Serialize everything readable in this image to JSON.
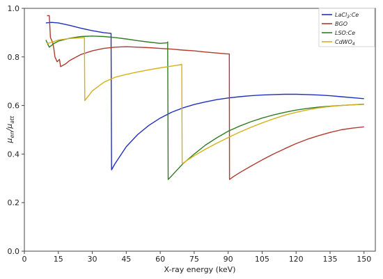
{
  "chart_data": {
    "type": "line",
    "xlabel": "X-ray energy (keV)",
    "ylabel_main": "μ",
    "ylabel_main_sub": "en",
    "ylabel_sep": "/",
    "ylabel_den": "μ",
    "ylabel_den_sub": "att",
    "xlim": [
      0,
      155
    ],
    "ylim": [
      0,
      1.0
    ],
    "xticks": [
      0,
      15,
      30,
      45,
      60,
      75,
      90,
      105,
      120,
      135,
      150
    ],
    "yticks": [
      0.0,
      0.2,
      0.4,
      0.6,
      0.8,
      1.0
    ],
    "ytick_labels": [
      "0.0",
      "0.2",
      "0.4",
      "0.6",
      "0.8",
      "1.0"
    ],
    "legend_position": "top-right",
    "grid": false,
    "series": [
      {
        "name": "LaCl3:Ce",
        "legend_parts": [
          "LaCl",
          "3",
          ":Ce"
        ],
        "color": "#1f2fbf",
        "points": [
          [
            9.5,
            0.94
          ],
          [
            12,
            0.942
          ],
          [
            15,
            0.94
          ],
          [
            20,
            0.93
          ],
          [
            25,
            0.918
          ],
          [
            30,
            0.908
          ],
          [
            35,
            0.9
          ],
          [
            37,
            0.898
          ],
          [
            38.3,
            0.897
          ],
          [
            38.5,
            0.335
          ],
          [
            40,
            0.36
          ],
          [
            45,
            0.43
          ],
          [
            50,
            0.48
          ],
          [
            55,
            0.518
          ],
          [
            60,
            0.548
          ],
          [
            65,
            0.572
          ],
          [
            70,
            0.59
          ],
          [
            75,
            0.604
          ],
          [
            80,
            0.615
          ],
          [
            85,
            0.624
          ],
          [
            90,
            0.631
          ],
          [
            95,
            0.636
          ],
          [
            100,
            0.64
          ],
          [
            105,
            0.643
          ],
          [
            110,
            0.645
          ],
          [
            115,
            0.646
          ],
          [
            120,
            0.646
          ],
          [
            125,
            0.645
          ],
          [
            130,
            0.643
          ],
          [
            135,
            0.64
          ],
          [
            140,
            0.636
          ],
          [
            145,
            0.632
          ],
          [
            150,
            0.628
          ]
        ]
      },
      {
        "name": "BGO",
        "legend_parts": [
          "BGO"
        ],
        "color": "#b03a2e",
        "points": [
          [
            10,
            0.97
          ],
          [
            11,
            0.97
          ],
          [
            11.5,
            0.88
          ],
          [
            12.5,
            0.86
          ],
          [
            13,
            0.835
          ],
          [
            13.5,
            0.8
          ],
          [
            14.5,
            0.78
          ],
          [
            15.5,
            0.79
          ],
          [
            16,
            0.76
          ],
          [
            18,
            0.77
          ],
          [
            20,
            0.785
          ],
          [
            25,
            0.81
          ],
          [
            30,
            0.825
          ],
          [
            35,
            0.835
          ],
          [
            40,
            0.84
          ],
          [
            45,
            0.842
          ],
          [
            50,
            0.84
          ],
          [
            55,
            0.838
          ],
          [
            60,
            0.835
          ],
          [
            65,
            0.832
          ],
          [
            70,
            0.828
          ],
          [
            75,
            0.825
          ],
          [
            80,
            0.82
          ],
          [
            85,
            0.816
          ],
          [
            89,
            0.813
          ],
          [
            90.5,
            0.812
          ],
          [
            90.6,
            0.295
          ],
          [
            92,
            0.305
          ],
          [
            95,
            0.323
          ],
          [
            100,
            0.35
          ],
          [
            105,
            0.376
          ],
          [
            110,
            0.4
          ],
          [
            115,
            0.422
          ],
          [
            120,
            0.443
          ],
          [
            125,
            0.461
          ],
          [
            130,
            0.476
          ],
          [
            135,
            0.489
          ],
          [
            140,
            0.5
          ],
          [
            145,
            0.507
          ],
          [
            150,
            0.512
          ]
        ]
      },
      {
        "name": "LSO:Ce",
        "legend_parts": [
          "LSO:Ce"
        ],
        "color": "#2e7d1f",
        "points": [
          [
            9.5,
            0.87
          ],
          [
            10.5,
            0.85
          ],
          [
            11,
            0.84
          ],
          [
            13,
            0.855
          ],
          [
            15,
            0.865
          ],
          [
            20,
            0.877
          ],
          [
            25,
            0.884
          ],
          [
            30,
            0.886
          ],
          [
            35,
            0.884
          ],
          [
            40,
            0.88
          ],
          [
            45,
            0.874
          ],
          [
            50,
            0.867
          ],
          [
            55,
            0.861
          ],
          [
            60,
            0.856
          ],
          [
            63,
            0.858
          ],
          [
            63.3,
            0.862
          ],
          [
            63.5,
            0.295
          ],
          [
            66,
            0.32
          ],
          [
            70,
            0.36
          ],
          [
            75,
            0.4
          ],
          [
            80,
            0.437
          ],
          [
            85,
            0.467
          ],
          [
            90,
            0.494
          ],
          [
            95,
            0.515
          ],
          [
            100,
            0.533
          ],
          [
            105,
            0.548
          ],
          [
            110,
            0.561
          ],
          [
            115,
            0.572
          ],
          [
            120,
            0.581
          ],
          [
            125,
            0.588
          ],
          [
            130,
            0.593
          ],
          [
            135,
            0.597
          ],
          [
            140,
            0.6
          ],
          [
            145,
            0.603
          ],
          [
            150,
            0.605
          ]
        ]
      },
      {
        "name": "CdWO4",
        "legend_parts": [
          "CdWO",
          "4"
        ],
        "color": "#d4b11a",
        "points": [
          [
            10,
            0.855
          ],
          [
            12,
            0.86
          ],
          [
            15,
            0.87
          ],
          [
            20,
            0.876
          ],
          [
            24,
            0.878
          ],
          [
            26.5,
            0.88
          ],
          [
            26.7,
            0.62
          ],
          [
            30,
            0.66
          ],
          [
            35,
            0.695
          ],
          [
            40,
            0.716
          ],
          [
            45,
            0.728
          ],
          [
            50,
            0.738
          ],
          [
            55,
            0.747
          ],
          [
            60,
            0.755
          ],
          [
            65,
            0.762
          ],
          [
            69,
            0.768
          ],
          [
            69.5,
            0.77
          ],
          [
            69.7,
            0.36
          ],
          [
            72,
            0.375
          ],
          [
            75,
            0.393
          ],
          [
            80,
            0.42
          ],
          [
            85,
            0.445
          ],
          [
            90,
            0.468
          ],
          [
            95,
            0.49
          ],
          [
            100,
            0.51
          ],
          [
            105,
            0.528
          ],
          [
            110,
            0.545
          ],
          [
            115,
            0.56
          ],
          [
            120,
            0.572
          ],
          [
            125,
            0.582
          ],
          [
            130,
            0.59
          ],
          [
            135,
            0.596
          ],
          [
            140,
            0.6
          ],
          [
            145,
            0.603
          ],
          [
            150,
            0.606
          ]
        ]
      }
    ]
  }
}
